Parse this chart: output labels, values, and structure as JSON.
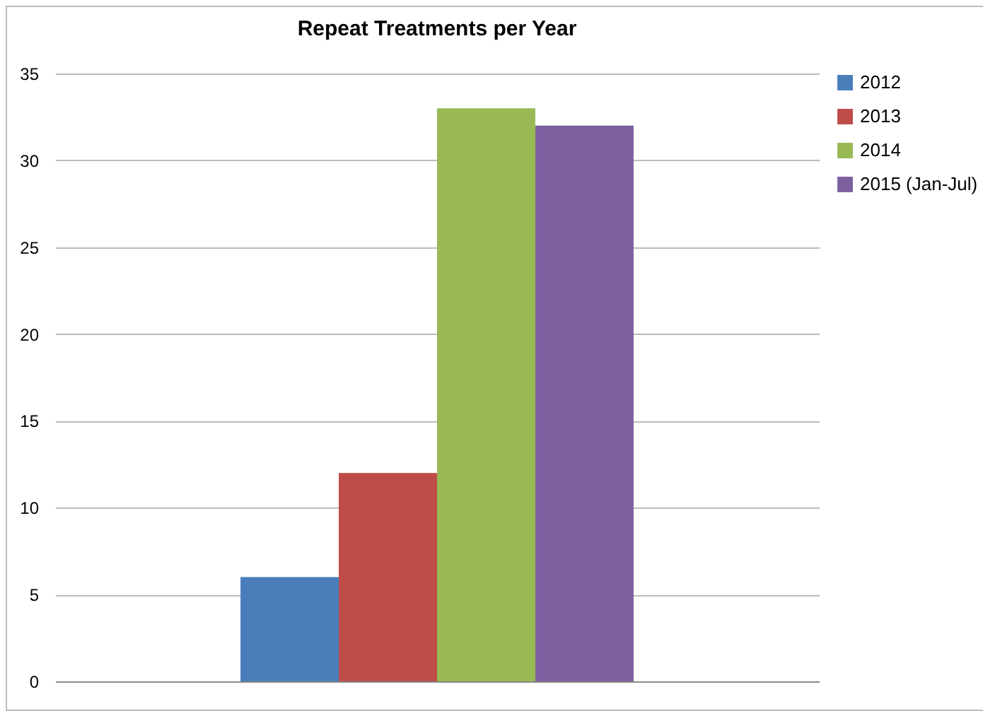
{
  "chart_data": {
    "type": "bar",
    "title": "Repeat Treatments per Year",
    "categories": [
      null
    ],
    "series": [
      {
        "name": "2012",
        "color": "#4a7ebb",
        "values": [
          6
        ]
      },
      {
        "name": "2013",
        "color": "#be4b48",
        "values": [
          12
        ]
      },
      {
        "name": "2014",
        "color": "#98b954",
        "values": [
          33
        ]
      },
      {
        "name": "2015 (Jan-Jul)",
        "color": "#7d60a0",
        "values": [
          32
        ]
      }
    ],
    "ylim": [
      0,
      35
    ],
    "yticks": [
      0,
      5,
      10,
      15,
      20,
      25,
      30,
      35
    ],
    "grid": "y",
    "legend": "right"
  }
}
